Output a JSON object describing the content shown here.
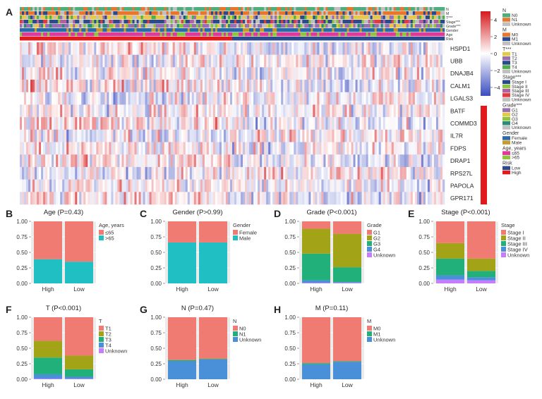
{
  "figure": {
    "panel_letters": [
      "A",
      "B",
      "C",
      "D",
      "E",
      "F",
      "G",
      "H"
    ]
  },
  "heatmap": {
    "annotation_rows": [
      "N",
      "M",
      "T***",
      "Stage***",
      "Grade***",
      "Gender",
      "Age",
      "Risk"
    ],
    "genes": [
      "HSPD1",
      "UBB",
      "DNAJB4",
      "CALM1",
      "LGALS3",
      "BATF",
      "COMMD3",
      "IL7R",
      "FDPS",
      "DRAP1",
      "RPS27L",
      "PAPOLA",
      "GPR171"
    ],
    "color_scale": {
      "ticks": [
        "4",
        "2",
        "0",
        "−2",
        "−4"
      ],
      "tick_values": [
        4,
        2,
        0,
        -2,
        -4
      ],
      "range": [
        -5,
        5
      ],
      "low_color": "#3b4cc0",
      "mid_color": "#ffffff",
      "high_color": "#d7191c"
    },
    "risk_split_fraction": 0.5,
    "legend_groups": [
      {
        "title": "N",
        "items": [
          {
            "label": "N0",
            "color": "#4daf7c"
          },
          {
            "label": "N1",
            "color": "#e8772e"
          },
          {
            "label": "Unknown",
            "color": "#c0c0c0"
          }
        ]
      },
      {
        "title": "M",
        "items": [
          {
            "label": "M0",
            "color": "#e8772e"
          },
          {
            "label": "M1",
            "color": "#2b4a8b"
          },
          {
            "label": "Unknown",
            "color": "#c0c0c0"
          }
        ]
      },
      {
        "title": "T***",
        "items": [
          {
            "label": "T1",
            "color": "#e6c84a"
          },
          {
            "label": "T2",
            "color": "#9a6fb0"
          },
          {
            "label": "T3",
            "color": "#2b4a8b"
          },
          {
            "label": "T4",
            "color": "#4daf4a"
          },
          {
            "label": "Unknown",
            "color": "#c0c0c0"
          }
        ]
      },
      {
        "title": "Stage***",
        "items": [
          {
            "label": "Stage I",
            "color": "#2b4a8b"
          },
          {
            "label": "Stage II",
            "color": "#8cc63f"
          },
          {
            "label": "Stage III",
            "color": "#b55fa3"
          },
          {
            "label": "Stage IV",
            "color": "#e23b3b"
          },
          {
            "label": "Unknown",
            "color": "#c0c0c0"
          }
        ]
      },
      {
        "title": "Grade***",
        "items": [
          {
            "label": "G1",
            "color": "#9a6fb0"
          },
          {
            "label": "G2",
            "color": "#e6c84a"
          },
          {
            "label": "G3",
            "color": "#8cc63f"
          },
          {
            "label": "G4",
            "color": "#2b8a7a"
          },
          {
            "label": "Unknown",
            "color": "#c0c0c0"
          }
        ]
      },
      {
        "title": "Gender",
        "items": [
          {
            "label": "Female",
            "color": "#2b6aa8"
          },
          {
            "label": "Male",
            "color": "#c89a2b"
          }
        ]
      },
      {
        "title": "Age, years",
        "items": [
          {
            "label": "≤65",
            "color": "#e0399a"
          },
          {
            "label": ">65",
            "color": "#8cc63f"
          }
        ]
      },
      {
        "title": "Risk",
        "items": [
          {
            "label": "Low",
            "color": "#2b4a8b"
          },
          {
            "label": "High",
            "color": "#e31a1c"
          }
        ]
      }
    ]
  },
  "chart_data": [
    {
      "panel": "B",
      "type": "bar",
      "stacked": true,
      "title": "Age (P=0.43)",
      "categories": [
        "High",
        "Low"
      ],
      "ylim": [
        0,
        1
      ],
      "yticks": [
        "0.00",
        "0.25",
        "0.50",
        "0.75",
        "1.00"
      ],
      "legend_title": "Age, years",
      "series": [
        {
          "name": ">65",
          "color": "#1fbfc4",
          "values": [
            0.39,
            0.35
          ]
        },
        {
          "name": "≤65",
          "color": "#f07b72",
          "values": [
            0.61,
            0.65
          ]
        }
      ]
    },
    {
      "panel": "C",
      "type": "bar",
      "stacked": true,
      "title": "Gender (P>0.99)",
      "categories": [
        "High",
        "Low"
      ],
      "ylim": [
        0,
        1
      ],
      "yticks": [
        "0.00",
        "0.25",
        "0.50",
        "0.75",
        "1.00"
      ],
      "legend_title": "Gender",
      "series": [
        {
          "name": "Male",
          "color": "#1fbfc4",
          "values": [
            0.66,
            0.66
          ]
        },
        {
          "name": "Female",
          "color": "#f07b72",
          "values": [
            0.34,
            0.34
          ]
        }
      ]
    },
    {
      "panel": "D",
      "type": "bar",
      "stacked": true,
      "title": "Grade (P<0.001)",
      "categories": [
        "High",
        "Low"
      ],
      "ylim": [
        0,
        1
      ],
      "yticks": [
        "0.00",
        "0.25",
        "0.50",
        "0.75",
        "1.00"
      ],
      "legend_title": "Grade",
      "series": [
        {
          "name": "Unknown",
          "color": "#c77cff",
          "values": [
            0.01,
            0.01
          ]
        },
        {
          "name": "G4",
          "color": "#4a90d9",
          "values": [
            0.04,
            0.01
          ]
        },
        {
          "name": "G3",
          "color": "#22b07a",
          "values": [
            0.43,
            0.24
          ]
        },
        {
          "name": "G2",
          "color": "#a3a318",
          "values": [
            0.4,
            0.54
          ]
        },
        {
          "name": "G1",
          "color": "#f07b72",
          "values": [
            0.12,
            0.2
          ]
        }
      ]
    },
    {
      "panel": "E",
      "type": "bar",
      "stacked": true,
      "title": "Stage (P<0.001)",
      "categories": [
        "High",
        "Low"
      ],
      "ylim": [
        0,
        1
      ],
      "yticks": [
        "0.00",
        "0.25",
        "0.50",
        "0.75",
        "1.00"
      ],
      "legend_title": "Stage",
      "series": [
        {
          "name": "Unknown",
          "color": "#c77cff",
          "values": [
            0.06,
            0.05
          ]
        },
        {
          "name": "Stage IV",
          "color": "#4a90d9",
          "values": [
            0.07,
            0.05
          ]
        },
        {
          "name": "Stage III",
          "color": "#22b07a",
          "values": [
            0.27,
            0.1
          ]
        },
        {
          "name": "Stage II",
          "color": "#a3a318",
          "values": [
            0.25,
            0.2
          ]
        },
        {
          "name": "Stage I",
          "color": "#f07b72",
          "values": [
            0.35,
            0.6
          ]
        }
      ]
    },
    {
      "panel": "F",
      "type": "bar",
      "stacked": true,
      "title": "T (P<0.001)",
      "categories": [
        "High",
        "Low"
      ],
      "ylim": [
        0,
        1
      ],
      "yticks": [
        "0.00",
        "0.25",
        "0.50",
        "0.75",
        "1.00"
      ],
      "legend_title": "T",
      "series": [
        {
          "name": "Unknown",
          "color": "#c77cff",
          "values": [
            0.01,
            0.01
          ]
        },
        {
          "name": "T4",
          "color": "#4a90d9",
          "values": [
            0.07,
            0.03
          ]
        },
        {
          "name": "T3",
          "color": "#22b07a",
          "values": [
            0.27,
            0.12
          ]
        },
        {
          "name": "T2",
          "color": "#a3a318",
          "values": [
            0.27,
            0.22
          ]
        },
        {
          "name": "T1",
          "color": "#f07b72",
          "values": [
            0.38,
            0.62
          ]
        }
      ]
    },
    {
      "panel": "G",
      "type": "bar",
      "stacked": true,
      "title": "N (P=0.47)",
      "categories": [
        "High",
        "Low"
      ],
      "ylim": [
        0,
        1
      ],
      "yticks": [
        "0.00",
        "0.25",
        "0.50",
        "0.75",
        "1.00"
      ],
      "legend_title": "N",
      "series": [
        {
          "name": "Unknown",
          "color": "#4a90d9",
          "values": [
            0.29,
            0.32
          ]
        },
        {
          "name": "N1",
          "color": "#22b07a",
          "values": [
            0.02,
            0.01
          ]
        },
        {
          "name": "N0",
          "color": "#f07b72",
          "values": [
            0.69,
            0.67
          ]
        }
      ]
    },
    {
      "panel": "H",
      "type": "bar",
      "stacked": true,
      "title": "M (P=0.11)",
      "categories": [
        "High",
        "Low"
      ],
      "ylim": [
        0,
        1
      ],
      "yticks": [
        "0.00",
        "0.25",
        "0.50",
        "0.75",
        "1.00"
      ],
      "legend_title": "M",
      "series": [
        {
          "name": "Unknown",
          "color": "#4a90d9",
          "values": [
            0.24,
            0.28
          ]
        },
        {
          "name": "M1",
          "color": "#22b07a",
          "values": [
            0.02,
            0.01
          ]
        },
        {
          "name": "M0",
          "color": "#f07b72",
          "values": [
            0.74,
            0.71
          ]
        }
      ]
    }
  ]
}
